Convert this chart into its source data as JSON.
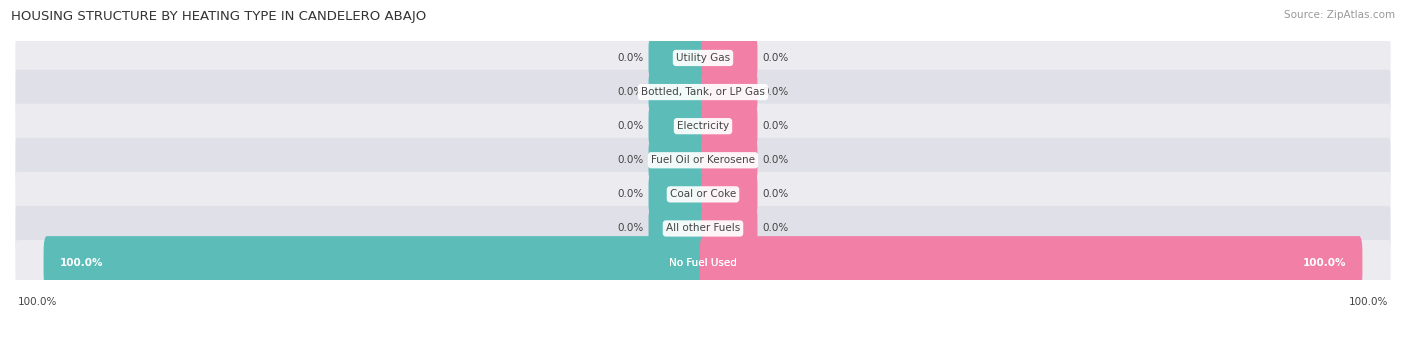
{
  "title": "HOUSING STRUCTURE BY HEATING TYPE IN CANDELERO ABAJO",
  "source": "Source: ZipAtlas.com",
  "categories": [
    "Utility Gas",
    "Bottled, Tank, or LP Gas",
    "Electricity",
    "Fuel Oil or Kerosene",
    "Coal or Coke",
    "All other Fuels",
    "No Fuel Used"
  ],
  "owner_values": [
    0.0,
    0.0,
    0.0,
    0.0,
    0.0,
    0.0,
    100.0
  ],
  "renter_values": [
    0.0,
    0.0,
    0.0,
    0.0,
    0.0,
    0.0,
    100.0
  ],
  "owner_color": "#5bbcb8",
  "renter_color": "#f27fa5",
  "row_bg_color": "#ebebf0",
  "row_bg_color2": "#e0e0e8",
  "label_color": "#444444",
  "title_color": "#333333",
  "source_color": "#999999",
  "figsize": [
    14.06,
    3.41
  ],
  "dpi": 100
}
